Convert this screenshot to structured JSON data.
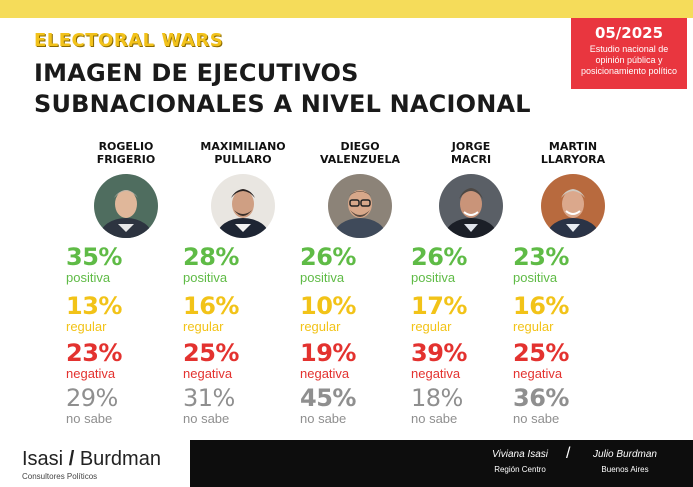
{
  "header": {
    "brand": "ELECTORAL WARS",
    "title_line1": "IMAGEN DE EJECUTIVOS",
    "title_line2": "SUBNACIONALES A NIVEL NACIONAL"
  },
  "badge": {
    "date": "05/2025",
    "desc_line1": "Estudio nacional de",
    "desc_line2": "opinión pública y",
    "desc_line3": "posicionamiento político"
  },
  "labels": {
    "positive": "positiva",
    "regular": "regular",
    "negative": "negativa",
    "unknown": "no sabe"
  },
  "colors": {
    "positive": "#5fbb46",
    "regular": "#f2c318",
    "negative": "#e3322f",
    "unknown": "#8f8f8f",
    "badge": "#e9363f",
    "top_bar": "#f5dc5a"
  },
  "chart_data": {
    "type": "table",
    "columns": [
      "positiva",
      "regular",
      "negativa",
      "no sabe"
    ],
    "rows": [
      {
        "name_line1": "ROGELIO",
        "name_line2": "FRIGERIO",
        "positive": "35%",
        "regular": "13%",
        "negative": "23%",
        "unknown": "29%"
      },
      {
        "name_line1": "MAXIMILIANO",
        "name_line2": "PULLARO",
        "positive": "28%",
        "regular": "16%",
        "negative": "25%",
        "unknown": "31%"
      },
      {
        "name_line1": "DIEGO",
        "name_line2": "VALENZUELA",
        "positive": "26%",
        "regular": "10%",
        "negative": "19%",
        "unknown": "45%"
      },
      {
        "name_line1": "JORGE",
        "name_line2": "MACRI",
        "positive": "26%",
        "regular": "17%",
        "negative": "39%",
        "unknown": "18%"
      },
      {
        "name_line1": "MARTIN",
        "name_line2": "LLARYORA",
        "positive": "23%",
        "regular": "16%",
        "negative": "25%",
        "unknown": "36%"
      }
    ]
  },
  "footer": {
    "firm_part1": "Isasi",
    "firm_slash": "/",
    "firm_part2": "Burdman",
    "firm_sub": "Consultores Políticos",
    "sig1_name": "Viviana Isasi",
    "sig1_place": "Región Centro",
    "sig_sep": "/",
    "sig2_name": "Julio Burdman",
    "sig2_place": "Buenos Aires"
  }
}
